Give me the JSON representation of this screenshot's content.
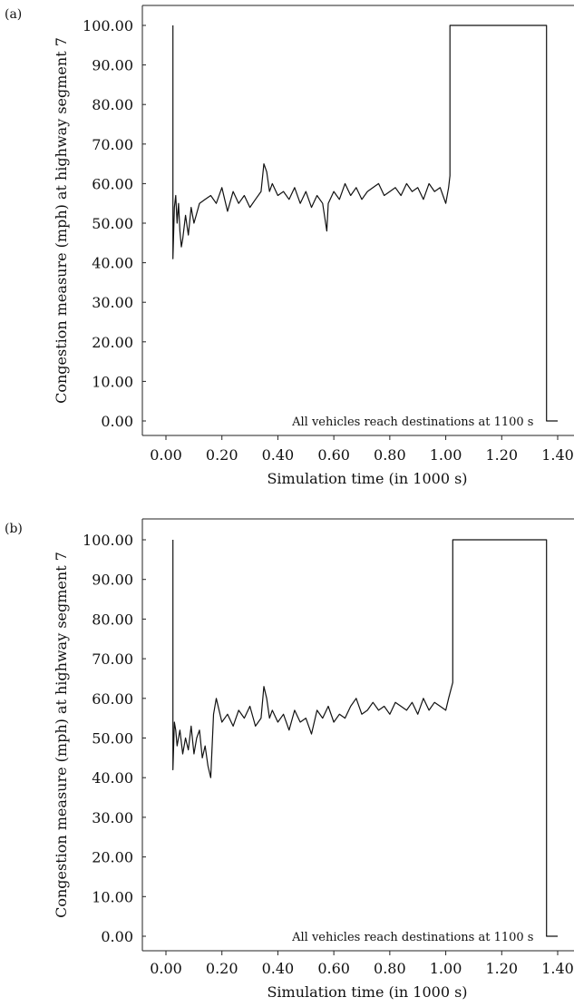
{
  "figure": {
    "colors": {
      "line": "#111111",
      "axis": "#222222",
      "background": "#ffffff"
    }
  },
  "chart_data": [
    {
      "type": "line",
      "panel_label": "(a)",
      "xlabel": "Simulation time (in 1000 s)",
      "ylabel": "Congestion measure (mph) at highway segment 7",
      "xlim": [
        -0.02,
        1.42
      ],
      "ylim": [
        -2,
        104
      ],
      "xticks": [
        0.0,
        0.2,
        0.4,
        0.6,
        0.8,
        1.0,
        1.2,
        1.4
      ],
      "xtick_labels": [
        "0.00",
        "0.20",
        "0.40",
        "0.60",
        "0.80",
        "1.00",
        "1.20",
        "1.40"
      ],
      "yticks": [
        0,
        10,
        20,
        30,
        40,
        50,
        60,
        70,
        80,
        90,
        100
      ],
      "ytick_labels": [
        "0.00",
        "10.00",
        "20.00",
        "30.00",
        "40.00",
        "50.00",
        "60.00",
        "70.00",
        "80.00",
        "90.00",
        "100.00"
      ],
      "annotation": {
        "text": "All vehicles reach destinations at 1100 s",
        "x": 1.34,
        "y": 0
      },
      "grid": false,
      "series": [
        {
          "x": [
            0.025,
            0.025,
            0.03,
            0.035,
            0.04,
            0.045,
            0.05,
            0.055,
            0.06,
            0.07,
            0.08,
            0.09,
            0.1,
            0.12,
            0.14,
            0.16,
            0.18,
            0.2,
            0.22,
            0.24,
            0.26,
            0.28,
            0.3,
            0.32,
            0.34,
            0.35,
            0.36,
            0.37,
            0.38,
            0.4,
            0.42,
            0.44,
            0.46,
            0.48,
            0.5,
            0.52,
            0.54,
            0.56,
            0.575,
            0.58,
            0.6,
            0.62,
            0.64,
            0.66,
            0.68,
            0.7,
            0.72,
            0.74,
            0.76,
            0.78,
            0.8,
            0.82,
            0.84,
            0.86,
            0.88,
            0.9,
            0.92,
            0.94,
            0.96,
            0.98,
            0.99,
            1.0,
            1.01,
            1.015,
            1.015,
            1.36,
            1.36,
            1.4
          ],
          "y": [
            100,
            41,
            54,
            57,
            50,
            55,
            48,
            44,
            46,
            52,
            47,
            54,
            50,
            55,
            56,
            57,
            55,
            59,
            53,
            58,
            55,
            57,
            54,
            56,
            58,
            65,
            63,
            58,
            60,
            57,
            58,
            56,
            59,
            55,
            58,
            54,
            57,
            55,
            48,
            55,
            58,
            56,
            60,
            57,
            59,
            56,
            58,
            59,
            60,
            57,
            58,
            59,
            57,
            60,
            58,
            59,
            56,
            60,
            58,
            59,
            57,
            55,
            59,
            62,
            100,
            100,
            0,
            0
          ]
        }
      ]
    },
    {
      "type": "line",
      "panel_label": "(b)",
      "xlabel": "Simulation time (in 1000 s)",
      "ylabel": "Congestion measure (mph) at highway segment 7",
      "xlim": [
        -0.02,
        1.42
      ],
      "ylim": [
        -2,
        104
      ],
      "xticks": [
        0.0,
        0.2,
        0.4,
        0.6,
        0.8,
        1.0,
        1.2,
        1.4
      ],
      "xtick_labels": [
        "0.00",
        "0.20",
        "0.40",
        "0.60",
        "0.80",
        "1.00",
        "1.20",
        "1.40"
      ],
      "yticks": [
        0,
        10,
        20,
        30,
        40,
        50,
        60,
        70,
        80,
        90,
        100
      ],
      "ytick_labels": [
        "0.00",
        "10.00",
        "20.00",
        "30.00",
        "40.00",
        "50.00",
        "60.00",
        "70.00",
        "80.00",
        "90.00",
        "100.00"
      ],
      "annotation": {
        "text": "All vehicles reach destinations at 1100 s",
        "x": 1.34,
        "y": 0
      },
      "grid": false,
      "series": [
        {
          "x": [
            0.025,
            0.025,
            0.03,
            0.035,
            0.04,
            0.05,
            0.06,
            0.07,
            0.08,
            0.09,
            0.1,
            0.11,
            0.12,
            0.13,
            0.14,
            0.15,
            0.16,
            0.17,
            0.18,
            0.2,
            0.22,
            0.24,
            0.26,
            0.28,
            0.3,
            0.32,
            0.34,
            0.35,
            0.36,
            0.37,
            0.38,
            0.4,
            0.42,
            0.44,
            0.46,
            0.48,
            0.5,
            0.52,
            0.54,
            0.56,
            0.58,
            0.6,
            0.62,
            0.64,
            0.66,
            0.68,
            0.7,
            0.72,
            0.74,
            0.76,
            0.78,
            0.8,
            0.82,
            0.84,
            0.86,
            0.88,
            0.9,
            0.92,
            0.94,
            0.96,
            0.98,
            1.0,
            1.01,
            1.025,
            1.025,
            1.36,
            1.36,
            1.4
          ],
          "y": [
            100,
            42,
            54,
            52,
            48,
            52,
            46,
            50,
            47,
            53,
            46,
            50,
            52,
            45,
            48,
            43,
            40,
            56,
            60,
            54,
            56,
            53,
            57,
            55,
            58,
            53,
            55,
            63,
            60,
            55,
            57,
            54,
            56,
            52,
            57,
            54,
            55,
            51,
            57,
            55,
            58,
            54,
            56,
            55,
            58,
            60,
            56,
            57,
            59,
            57,
            58,
            56,
            59,
            58,
            57,
            59,
            56,
            60,
            57,
            59,
            58,
            57,
            60,
            64,
            100,
            100,
            0,
            0
          ]
        }
      ]
    }
  ]
}
